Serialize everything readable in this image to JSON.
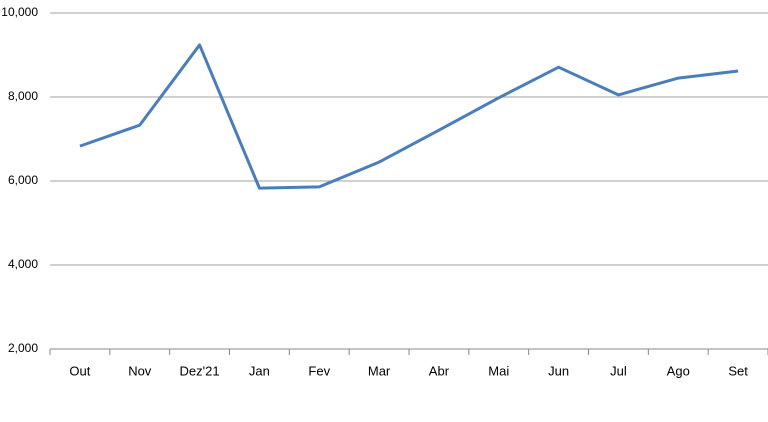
{
  "chart_data": {
    "type": "line",
    "categories": [
      "Out",
      "Nov",
      "Dez'21",
      "Jan",
      "Fev",
      "Mar",
      "Abr",
      "Mai",
      "Jun",
      "Jul",
      "Ago",
      "Set"
    ],
    "series": [
      {
        "color": "#4a7ebb",
        "values": [
          6830,
          7330,
          9240,
          5830,
          5860,
          6450,
          7210,
          7980,
          8710,
          8050,
          8450,
          8620
        ]
      }
    ],
    "ylim": [
      2000,
      10000
    ],
    "yticks": [
      {
        "value": 2000,
        "label": "2,000"
      },
      {
        "value": 4000,
        "label": "4,000"
      },
      {
        "value": 6000,
        "label": "6,000"
      },
      {
        "value": 8000,
        "label": "8,000"
      },
      {
        "value": 10000,
        "label": "10,000"
      }
    ],
    "grid": true
  }
}
